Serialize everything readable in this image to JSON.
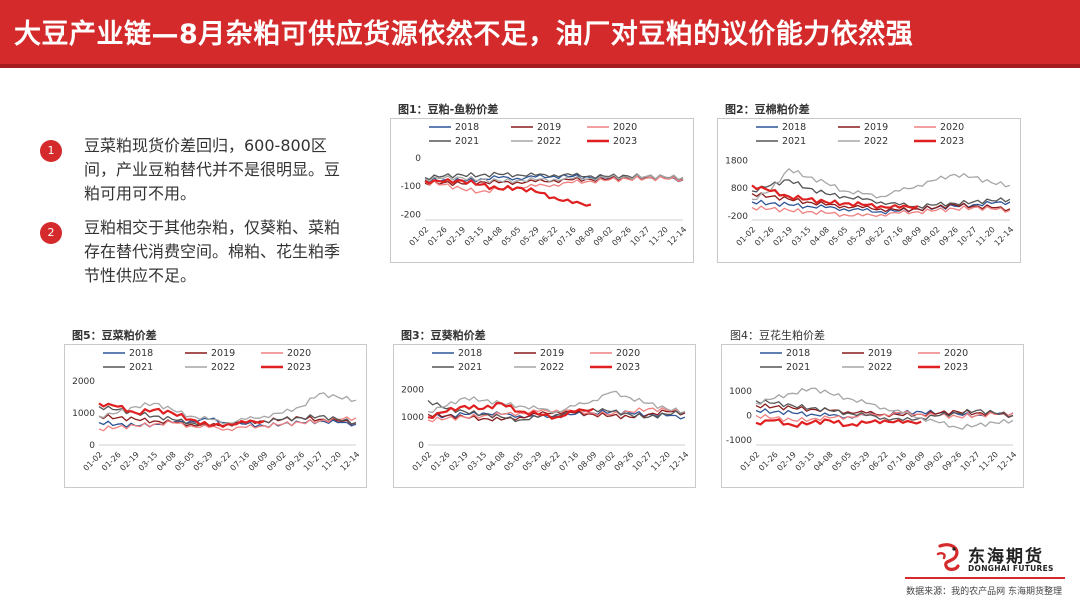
{
  "header": {
    "title": "大豆产业链—8月杂粕可供应货源依然不足，油厂对豆粕的议价能力依然强"
  },
  "bullets": [
    {
      "num": "1",
      "text": "豆菜粕现货价差回归，600-800区间，产业豆粕替代并不是很明显。豆粕可用可不用。"
    },
    {
      "num": "2",
      "text": "豆粕相交于其他杂粕，仅葵粕、菜粕存在替代消费空间。棉粕、花生粕季节性供应不足。"
    }
  ],
  "footer": {
    "source": "数据来源：我的农产品网 东海期货整理",
    "logo_cn": "东海期货",
    "logo_en": "DONGHAI FUTURES"
  },
  "colors": {
    "brand_red": "#d42a2b",
    "series": {
      "2018": "#2f5597",
      "2019": "#8b1a1a",
      "2020": "#f08080",
      "2021": "#555555",
      "2022": "#a6a6a6",
      "2023": "#e02020"
    }
  },
  "chart_data": [
    {
      "id": "c1",
      "title": "图1：豆粕-鱼粉价差",
      "type": "line",
      "x_ticks": [
        "01-02",
        "01-26",
        "02-19",
        "03-15",
        "04-08",
        "05-05",
        "05-29",
        "06-22",
        "07-16",
        "08-09",
        "09-02",
        "09-26",
        "10-27",
        "11-20",
        "12-14"
      ],
      "ylim": [
        -220,
        10
      ],
      "y_ticks": [
        0,
        -100,
        -200
      ],
      "series": [
        {
          "name": "2018",
          "values": [
            -80,
            -78,
            -82,
            -75,
            -70,
            -72,
            -68,
            -65,
            -66,
            -70,
            -72,
            -68,
            -70,
            -72,
            -78
          ]
        },
        {
          "name": "2019",
          "values": [
            -90,
            -88,
            -92,
            -85,
            -88,
            -86,
            -84,
            -80,
            -78,
            -76,
            -74,
            -72,
            -70,
            -72,
            -75
          ]
        },
        {
          "name": "2020",
          "values": [
            -85,
            -95,
            -110,
            -120,
            -112,
            -105,
            -100,
            -95,
            -88,
            -82,
            -78,
            -75,
            -72,
            -74,
            -76
          ]
        },
        {
          "name": "2021",
          "values": [
            -70,
            -65,
            -60,
            -62,
            -58,
            -60,
            -62,
            -60,
            -62,
            -64,
            -66,
            -64,
            -66,
            -68,
            -70
          ]
        },
        {
          "name": "2022",
          "values": [
            -75,
            -72,
            -70,
            -78,
            -82,
            -80,
            -78,
            -76,
            -74,
            -72,
            -70,
            -68,
            -66,
            -68,
            -70
          ]
        },
        {
          "name": "2023",
          "values": [
            -82,
            -85,
            -80,
            -95,
            -110,
            -105,
            -120,
            -140,
            -160,
            -165
          ]
        }
      ]
    },
    {
      "id": "c2",
      "title": "图2：豆棉粕价差",
      "type": "line",
      "x_ticks": [
        "01-02",
        "01-26",
        "02-19",
        "03-15",
        "04-08",
        "05-05",
        "05-29",
        "06-22",
        "07-16",
        "08-09",
        "09-02",
        "09-26",
        "10-27",
        "11-20",
        "12-14"
      ],
      "ylim": [
        -350,
        2000
      ],
      "y_ticks": [
        1800,
        800,
        -200
      ],
      "series": [
        {
          "name": "2018",
          "values": [
            300,
            250,
            200,
            150,
            100,
            50,
            0,
            -50,
            -20,
            50,
            100,
            150,
            200,
            250,
            300
          ]
        },
        {
          "name": "2019",
          "values": [
            600,
            500,
            400,
            300,
            200,
            150,
            100,
            50,
            0,
            50,
            100,
            200,
            150,
            100,
            50
          ]
        },
        {
          "name": "2020",
          "values": [
            100,
            50,
            0,
            -50,
            -100,
            -150,
            -200,
            -150,
            -100,
            -50,
            0,
            50,
            100,
            50,
            0
          ]
        },
        {
          "name": "2021",
          "values": [
            700,
            900,
            1100,
            800,
            600,
            500,
            400,
            300,
            200,
            150,
            200,
            250,
            300,
            350,
            400
          ]
        },
        {
          "name": "2022",
          "values": [
            400,
            700,
            1500,
            1200,
            1000,
            700,
            600,
            500,
            700,
            900,
            1100,
            1300,
            1200,
            1000,
            900
          ]
        },
        {
          "name": "2023",
          "values": [
            900,
            700,
            500,
            400,
            300,
            250,
            200,
            150,
            100,
            150
          ]
        }
      ]
    },
    {
      "id": "c5",
      "title": "图5：豆菜粕价差",
      "type": "line",
      "x_ticks": [
        "01-02",
        "01-26",
        "02-19",
        "03-15",
        "04-08",
        "05-05",
        "05-29",
        "06-22",
        "07-16",
        "08-09",
        "09-02",
        "09-26",
        "10-27",
        "11-20",
        "12-14"
      ],
      "ylim": [
        0,
        2000
      ],
      "y_ticks": [
        2000,
        1000,
        0
      ],
      "series": [
        {
          "name": "2018",
          "values": [
            700,
            650,
            600,
            650,
            700,
            750,
            800,
            700,
            650,
            600,
            650,
            700,
            750,
            700,
            650
          ]
        },
        {
          "name": "2019",
          "values": [
            900,
            850,
            800,
            750,
            700,
            650,
            600,
            650,
            700,
            750,
            800,
            850,
            800,
            750,
            700
          ]
        },
        {
          "name": "2020",
          "values": [
            500,
            550,
            600,
            650,
            700,
            600,
            550,
            500,
            550,
            600,
            650,
            700,
            750,
            800,
            850
          ]
        },
        {
          "name": "2021",
          "values": [
            1200,
            1100,
            1000,
            900,
            800,
            700,
            600,
            650,
            700,
            750,
            800,
            850,
            900,
            800,
            700
          ]
        },
        {
          "name": "2022",
          "values": [
            900,
            1000,
            1200,
            1300,
            1100,
            900,
            800,
            700,
            800,
            900,
            1000,
            1200,
            1600,
            1500,
            1400
          ]
        },
        {
          "name": "2023",
          "values": [
            1300,
            1200,
            1000,
            1100,
            1000,
            800,
            600,
            650,
            700,
            750
          ]
        }
      ]
    },
    {
      "id": "c3",
      "title": "图3：豆葵粕价差",
      "type": "line",
      "x_ticks": [
        "01-02",
        "01-26",
        "02-19",
        "03-15",
        "04-08",
        "05-05",
        "05-29",
        "06-22",
        "07-16",
        "08-09",
        "09-02",
        "09-26",
        "10-27",
        "11-20",
        "12-14"
      ],
      "ylim": [
        0,
        2300
      ],
      "y_ticks": [
        2000,
        1000,
        0
      ],
      "series": [
        {
          "name": "2018",
          "values": [
            1000,
            1050,
            1100,
            1150,
            1100,
            1050,
            1000,
            1050,
            1100,
            1150,
            1200,
            1150,
            1100,
            1050,
            1000
          ]
        },
        {
          "name": "2019",
          "values": [
            1100,
            1050,
            1000,
            950,
            900,
            1000,
            1100,
            1200,
            1150,
            1100,
            1050,
            1000,
            1100,
            1200,
            1150
          ]
        },
        {
          "name": "2020",
          "values": [
            900,
            950,
            1000,
            1050,
            1100,
            1150,
            1200,
            1250,
            1200,
            1150,
            1100,
            1200,
            1300,
            1250,
            1200
          ]
        },
        {
          "name": "2021",
          "values": [
            1600,
            1300,
            1200,
            1100,
            1000,
            900,
            1000,
            1100,
            1200,
            1300,
            1200,
            1100,
            1000,
            1100,
            1200
          ]
        },
        {
          "name": "2022",
          "values": [
            1200,
            1400,
            1700,
            1600,
            1500,
            1400,
            1300,
            1200,
            1400,
            1600,
            1900,
            1700,
            1500,
            1300,
            1200
          ]
        },
        {
          "name": "2023",
          "values": [
            1000,
            1200,
            1400,
            1300,
            1500,
            1200,
            1100,
            1000,
            1200,
            1300
          ]
        }
      ]
    },
    {
      "id": "c4",
      "title": "图4：豆花生粕价差",
      "type": "line",
      "x_ticks": [
        "01-02",
        "01-26",
        "02-19",
        "03-15",
        "04-08",
        "05-05",
        "05-29",
        "06-22",
        "07-16",
        "08-09",
        "09-02",
        "09-26",
        "10-27",
        "11-20",
        "12-14"
      ],
      "ylim": [
        -1200,
        1400
      ],
      "y_ticks": [
        1000,
        0,
        -1000
      ],
      "series": [
        {
          "name": "2018",
          "values": [
            200,
            150,
            100,
            50,
            0,
            -50,
            0,
            50,
            100,
            150,
            100,
            50,
            0,
            50,
            100
          ]
        },
        {
          "name": "2019",
          "values": [
            400,
            350,
            300,
            250,
            200,
            150,
            100,
            50,
            0,
            50,
            100,
            150,
            100,
            50,
            0
          ]
        },
        {
          "name": "2020",
          "values": [
            0,
            -100,
            -200,
            -150,
            -100,
            -50,
            0,
            50,
            100,
            50,
            0,
            -50,
            0,
            50,
            100
          ]
        },
        {
          "name": "2021",
          "values": [
            600,
            500,
            400,
            300,
            200,
            100,
            0,
            -100,
            -200,
            -100,
            0,
            100,
            200,
            100,
            0
          ]
        },
        {
          "name": "2022",
          "values": [
            500,
            700,
            900,
            1100,
            900,
            700,
            500,
            300,
            100,
            -100,
            -300,
            -500,
            -400,
            -300,
            -200
          ]
        },
        {
          "name": "2023",
          "values": [
            -300,
            -200,
            -400,
            -300,
            -200,
            -400,
            -300,
            -200,
            -300,
            -250
          ]
        }
      ]
    }
  ]
}
